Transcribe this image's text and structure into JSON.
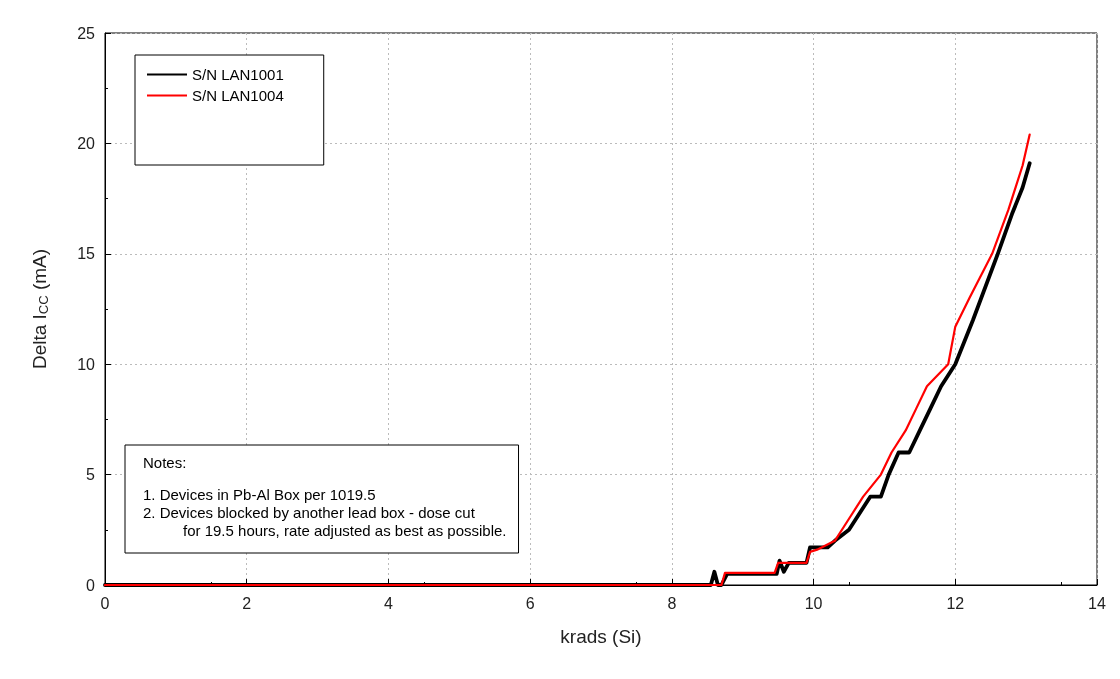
{
  "chart_data": {
    "type": "line",
    "xlabel": "krads (Si)",
    "ylabel": "Delta I$_{CC}$ (mA)",
    "xlim": [
      0,
      14
    ],
    "xticks": [
      0,
      2,
      4,
      6,
      8,
      10,
      12,
      14
    ],
    "ylim": [
      0,
      25
    ],
    "yticks": [
      0,
      5,
      10,
      15,
      20,
      25
    ],
    "grid": true,
    "legend": "top left",
    "line_style": "solid",
    "marker": "none",
    "annotations": [
      "Notes:",
      "1. Devices in Pb-Al Box per 1019.5",
      "2. Devices blocked by another lead box - dose cut",
      "for 19.5 hours, rate adjusted as best as possible."
    ],
    "series": [
      {
        "name": "S/N LAN1001",
        "color": "#000000",
        "x": [
          0,
          8.55,
          8.6,
          8.65,
          8.7,
          8.78,
          9.48,
          9.52,
          9.58,
          9.65,
          9.9,
          9.95,
          10.2,
          10.3,
          10.5,
          10.6,
          10.8,
          10.95,
          11.06,
          11.2,
          11.35,
          11.5,
          11.65,
          11.8,
          12.0,
          12.25,
          12.6,
          12.8,
          12.95,
          13.05
        ],
        "values": [
          0,
          0,
          0.6,
          0,
          0,
          0.5,
          0.5,
          1.1,
          0.6,
          1.0,
          1.0,
          1.7,
          1.7,
          2.0,
          2.5,
          3.0,
          4.0,
          4.0,
          5.0,
          6.0,
          6.0,
          7.0,
          8.0,
          9.0,
          10.0,
          12.0,
          15.0,
          16.8,
          18.0,
          19.1
        ]
      },
      {
        "name": "S/N LAN1004",
        "color": "#ff0000",
        "x": [
          0,
          8.7,
          8.75,
          9.45,
          9.5,
          9.9,
          9.95,
          10.05,
          10.3,
          10.5,
          10.7,
          10.95,
          11.1,
          11.3,
          11.45,
          11.6,
          11.9,
          12.0,
          12.2,
          12.52,
          12.75,
          12.95,
          13.05
        ],
        "values": [
          0,
          0,
          0.55,
          0.55,
          1.0,
          1.0,
          1.5,
          1.6,
          2.0,
          3.0,
          4.0,
          5.0,
          6.0,
          7.0,
          8.0,
          9.0,
          10.0,
          11.7,
          13.0,
          15.0,
          17.0,
          19.0,
          20.4
        ]
      }
    ]
  }
}
